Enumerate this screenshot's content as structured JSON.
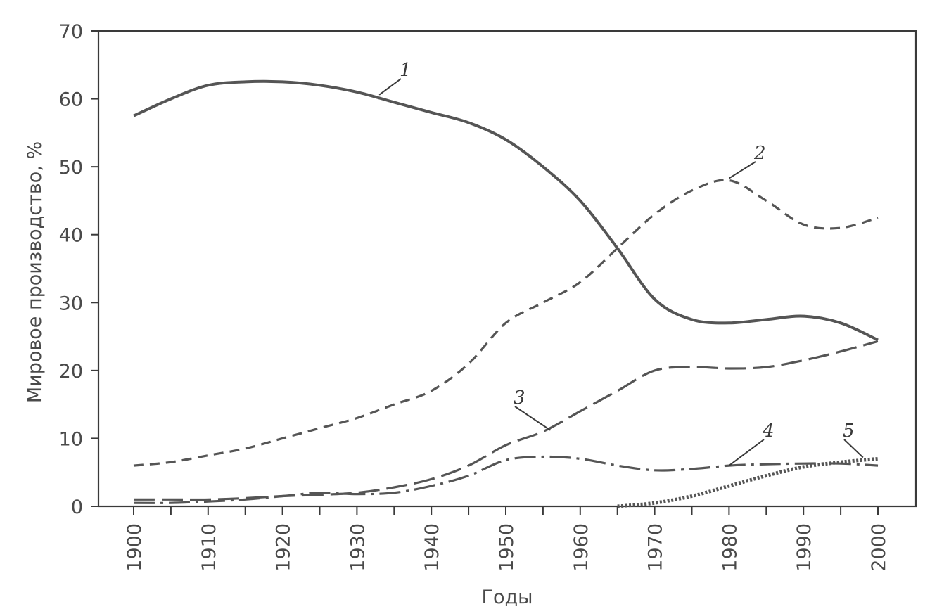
{
  "chart_data": {
    "type": "line",
    "xlabel": "Годы",
    "ylabel": "Мировое производство, %",
    "xlim": [
      1900,
      2000
    ],
    "ylim": [
      0,
      70
    ],
    "x_ticks": [
      "1900",
      "1910",
      "1920",
      "1930",
      "1940",
      "1950",
      "1960",
      "1970",
      "1980",
      "1990",
      "2000"
    ],
    "y_ticks": [
      "0",
      "10",
      "20",
      "30",
      "40",
      "50",
      "60",
      "70"
    ],
    "grid": false,
    "series": [
      {
        "label": "1",
        "style": "solid",
        "x": [
          1900,
          1905,
          1910,
          1915,
          1920,
          1925,
          1930,
          1935,
          1940,
          1945,
          1950,
          1955,
          1960,
          1965,
          1970,
          1975,
          1980,
          1985,
          1990,
          1995,
          2000
        ],
        "y": [
          57.5,
          60,
          62,
          62.5,
          62.5,
          62,
          61,
          59.5,
          58,
          56.5,
          54,
          50,
          45,
          38,
          30.5,
          27.5,
          27,
          27.5,
          28,
          27,
          24.5
        ]
      },
      {
        "label": "2",
        "style": "dashed",
        "x": [
          1900,
          1905,
          1910,
          1915,
          1920,
          1925,
          1930,
          1935,
          1940,
          1945,
          1950,
          1955,
          1960,
          1965,
          1970,
          1975,
          1980,
          1985,
          1990,
          1995,
          2000
        ],
        "y": [
          6,
          6.5,
          7.5,
          8.5,
          10,
          11.5,
          13,
          15,
          17,
          21,
          27,
          30,
          33,
          38,
          43,
          46.5,
          48,
          45,
          41.5,
          41,
          42.5
        ]
      },
      {
        "label": "3",
        "style": "long-dash",
        "x": [
          1900,
          1905,
          1910,
          1915,
          1920,
          1925,
          1930,
          1935,
          1940,
          1945,
          1950,
          1955,
          1960,
          1965,
          1970,
          1975,
          1980,
          1985,
          1990,
          1995,
          2000
        ],
        "y": [
          1,
          1,
          1,
          1.2,
          1.5,
          1.7,
          2,
          2.8,
          4,
          6,
          9,
          11,
          14,
          17,
          20,
          20.5,
          20.3,
          20.5,
          21.5,
          22.8,
          24.3
        ]
      },
      {
        "label": "4",
        "style": "dash-dot",
        "x": [
          1900,
          1905,
          1910,
          1915,
          1920,
          1925,
          1930,
          1935,
          1940,
          1945,
          1950,
          1955,
          1960,
          1965,
          1970,
          1975,
          1980,
          1985,
          1990,
          1995,
          2000
        ],
        "y": [
          0.5,
          0.5,
          0.7,
          1,
          1.5,
          2,
          1.8,
          2,
          3,
          4.5,
          6.8,
          7.3,
          7,
          6,
          5.3,
          5.5,
          6,
          6.2,
          6.3,
          6.3,
          6
        ]
      },
      {
        "label": "5",
        "style": "dotted",
        "x": [
          1965,
          1970,
          1975,
          1980,
          1985,
          1990,
          1995,
          2000
        ],
        "y": [
          0,
          0.5,
          1.5,
          3,
          4.5,
          5.8,
          6.5,
          7
        ]
      }
    ]
  }
}
